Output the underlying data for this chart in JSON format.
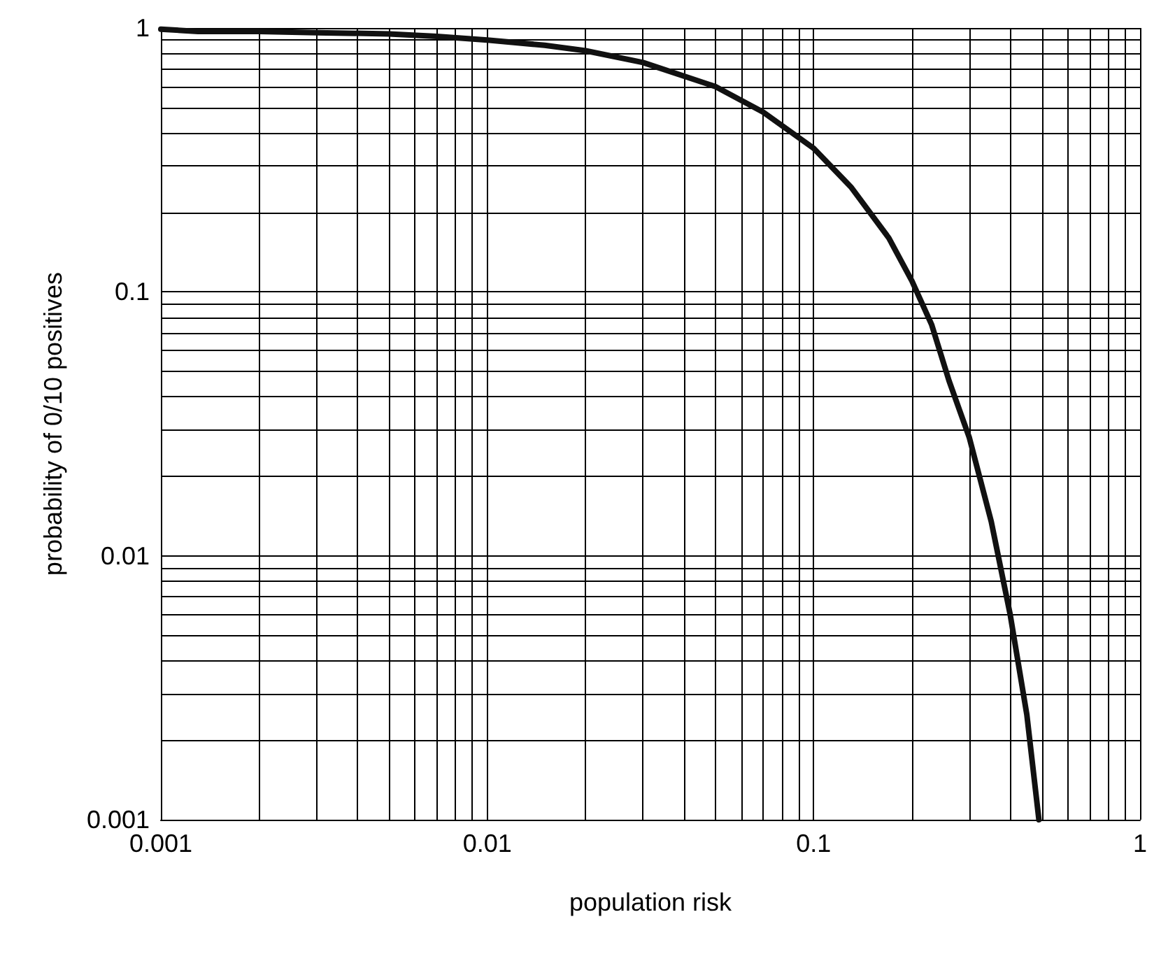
{
  "chart_data": {
    "type": "line",
    "xlabel": "population risk",
    "ylabel": "probability of 0/10 positives",
    "log": "xy",
    "grid": true,
    "marker": "none",
    "line_style": "solid",
    "xlim": [
      0.001,
      1
    ],
    "ylim": [
      0.001,
      1
    ],
    "xticks": [
      0.001,
      {
        "value": 0.002,
        "label": null
      },
      {
        "value": 0.003,
        "label": null
      },
      {
        "value": 0.004,
        "label": null
      },
      {
        "value": 0.005,
        "label": null
      },
      {
        "value": 0.006,
        "label": null
      },
      {
        "value": 0.007,
        "label": null
      },
      {
        "value": 0.008,
        "label": null
      },
      {
        "value": 0.009,
        "label": null
      },
      0.01,
      {
        "value": 0.02,
        "label": null
      },
      {
        "value": 0.03,
        "label": null
      },
      {
        "value": 0.04,
        "label": null
      },
      {
        "value": 0.05,
        "label": null
      },
      {
        "value": 0.06,
        "label": null
      },
      {
        "value": 0.07,
        "label": null
      },
      {
        "value": 0.08,
        "label": null
      },
      {
        "value": 0.09,
        "label": null
      },
      0.1,
      {
        "value": 0.2,
        "label": null
      },
      {
        "value": 0.3,
        "label": null
      },
      {
        "value": 0.4,
        "label": null
      },
      {
        "value": 0.5,
        "label": null
      },
      {
        "value": 0.6,
        "label": null
      },
      {
        "value": 0.7,
        "label": null
      },
      {
        "value": 0.8,
        "label": null
      },
      {
        "value": 0.9,
        "label": null
      },
      1
    ],
    "yticks": [
      0.001,
      {
        "value": 0.002,
        "label": null
      },
      {
        "value": 0.003,
        "label": null
      },
      {
        "value": 0.004,
        "label": null
      },
      {
        "value": 0.005,
        "label": null
      },
      {
        "value": 0.006,
        "label": null
      },
      {
        "value": 0.007,
        "label": null
      },
      {
        "value": 0.008,
        "label": null
      },
      {
        "value": 0.009,
        "label": null
      },
      0.01,
      {
        "value": 0.02,
        "label": null
      },
      {
        "value": 0.03,
        "label": null
      },
      {
        "value": 0.04,
        "label": null
      },
      {
        "value": 0.05,
        "label": null
      },
      {
        "value": 0.06,
        "label": null
      },
      {
        "value": 0.07,
        "label": null
      },
      {
        "value": 0.08,
        "label": null
      },
      {
        "value": 0.09,
        "label": null
      },
      0.1,
      {
        "value": 0.2,
        "label": null
      },
      {
        "value": 0.3,
        "label": null
      },
      {
        "value": 0.4,
        "label": null
      },
      {
        "value": 0.5,
        "label": null
      },
      {
        "value": 0.6,
        "label": null
      },
      {
        "value": 0.7,
        "label": null
      },
      {
        "value": 0.8,
        "label": null
      },
      {
        "value": 0.9,
        "label": null
      },
      1
    ],
    "x": [
      0.001,
      0.0013,
      0.002,
      0.003,
      0.005,
      0.007,
      0.01,
      0.015,
      0.02,
      0.03,
      0.05,
      0.07,
      0.1,
      0.13,
      0.17,
      0.2,
      0.23,
      0.26,
      0.3,
      0.35,
      0.4,
      0.45,
      0.49
    ],
    "series": [
      {
        "color": "#111111",
        "values": [
          0.99,
          0.97,
          0.97,
          0.96,
          0.95,
          0.93,
          0.9,
          0.86,
          0.82,
          0.74,
          0.6,
          0.48,
          0.35,
          0.25,
          0.16,
          0.11,
          0.075,
          0.046,
          0.028,
          0.0135,
          0.006,
          0.0025,
          0.001
        ]
      }
    ]
  }
}
